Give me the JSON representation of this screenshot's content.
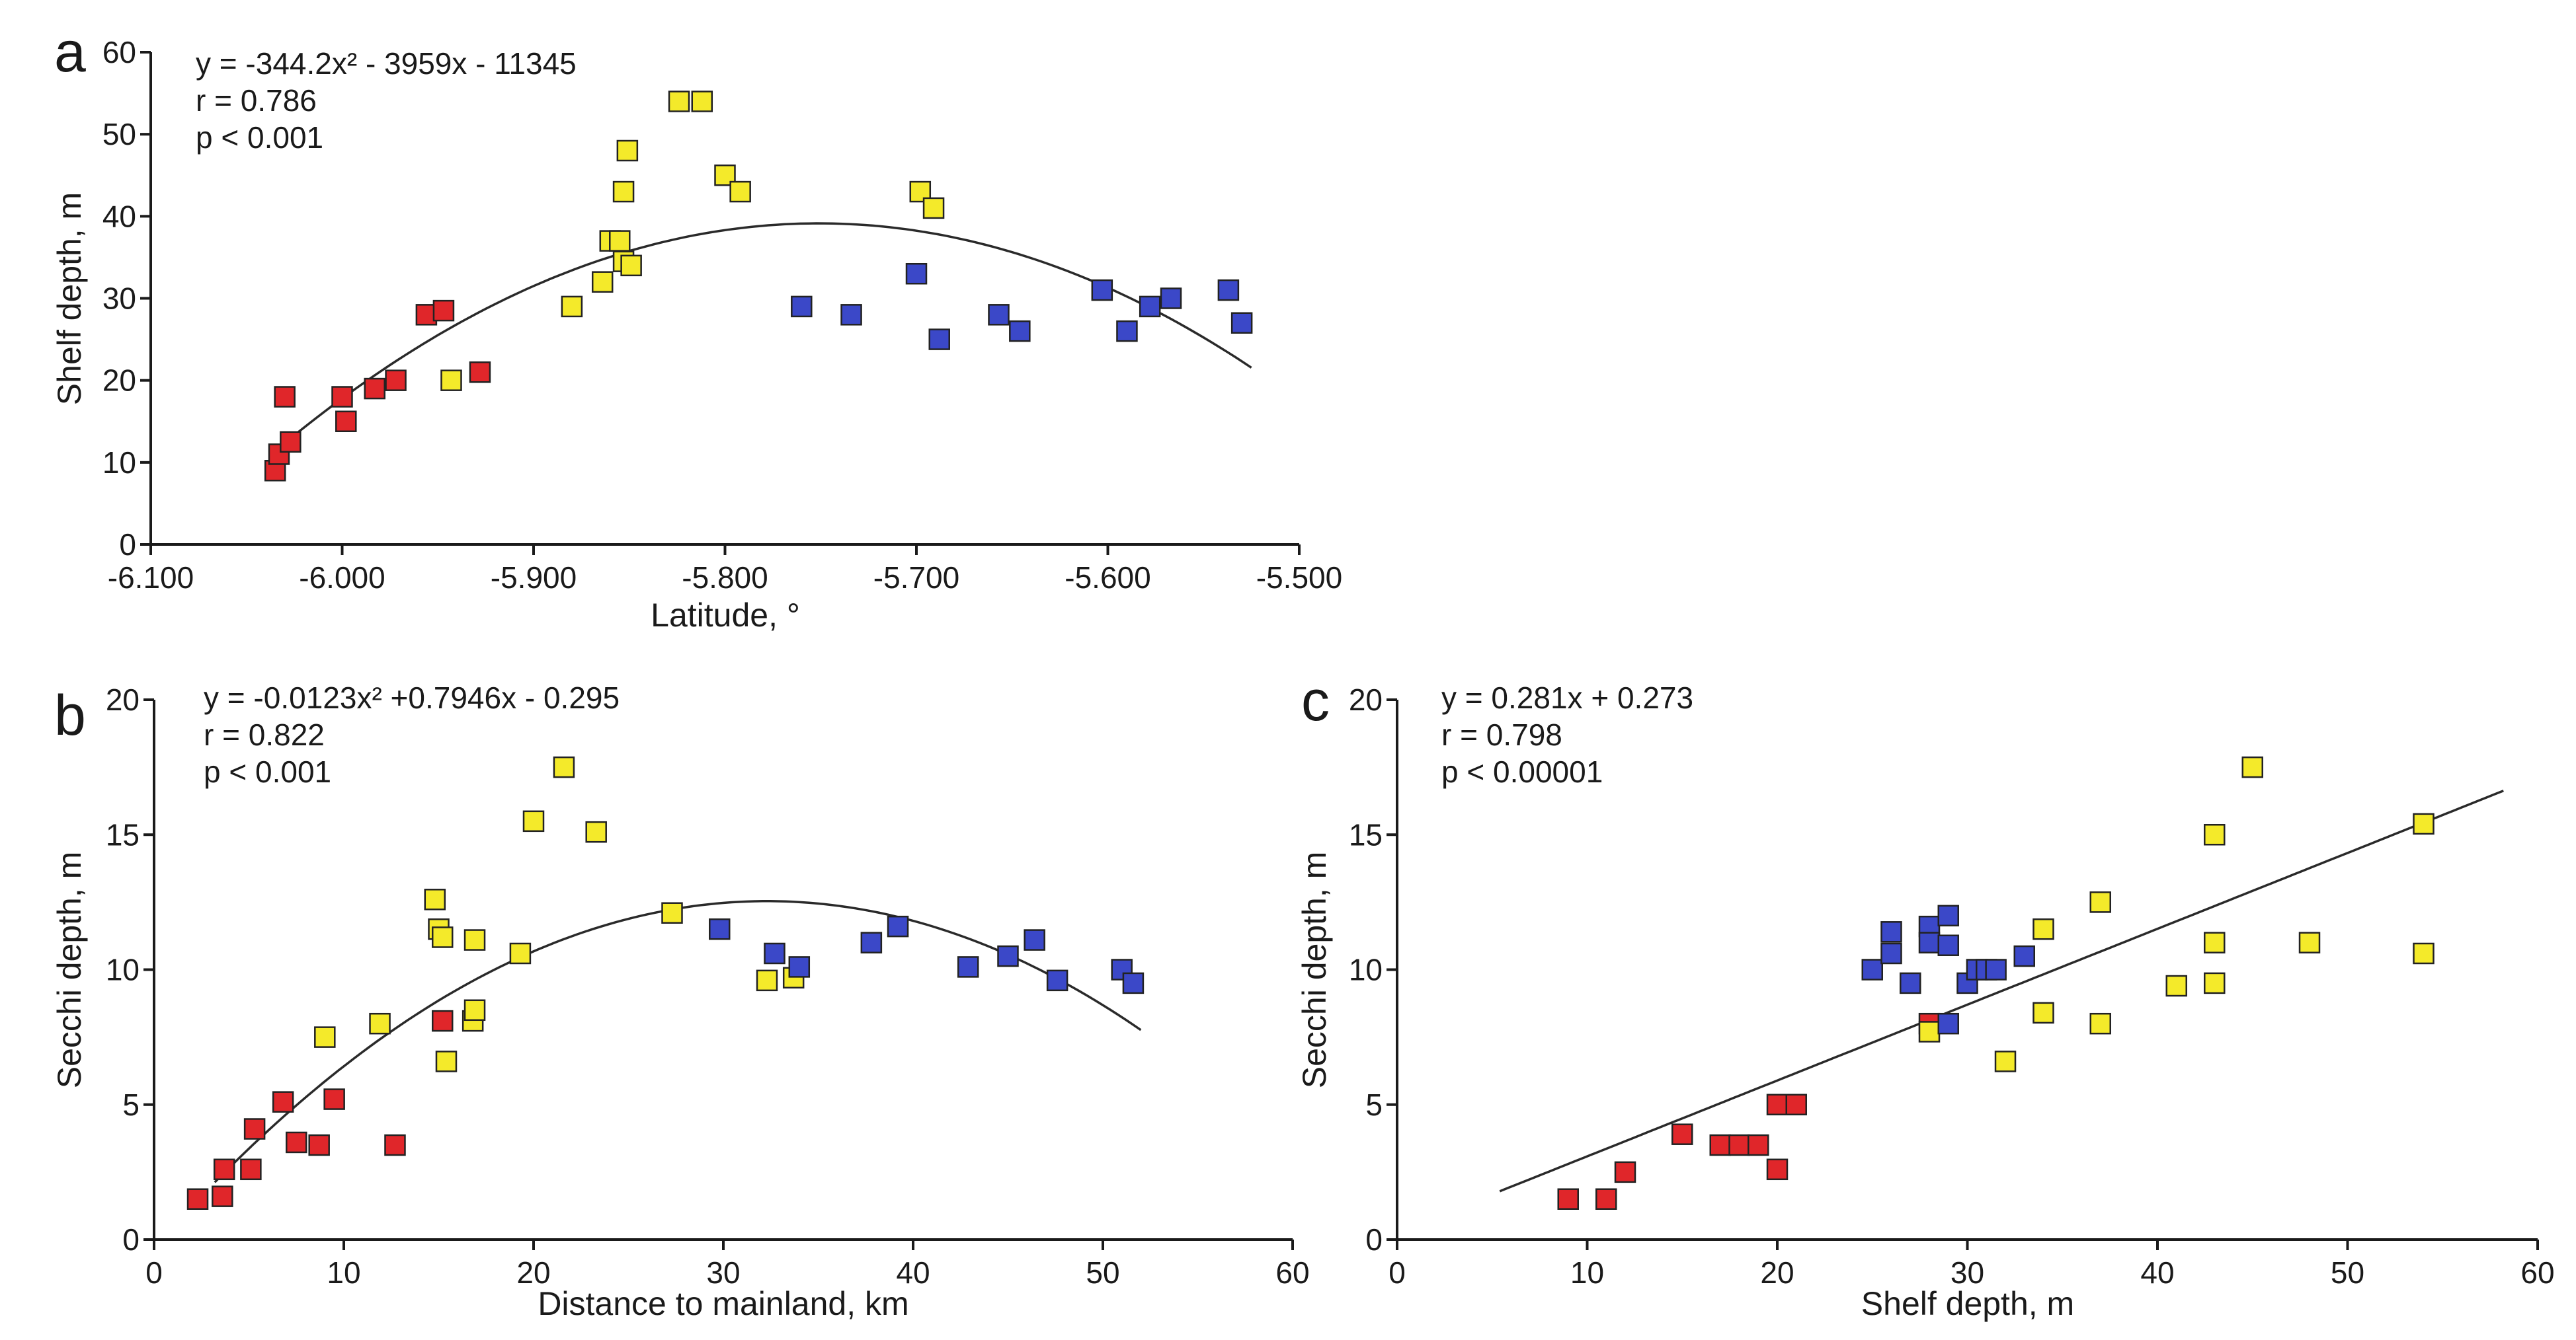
{
  "colors": {
    "red": "#e0262a",
    "yellow": "#f4ea2a",
    "blue": "#3b48c8",
    "axis": "#1a1a1a",
    "curve": "#2a2a2a"
  },
  "chart_data": [
    {
      "id": "a",
      "type": "scatter",
      "panel_label": "a",
      "xlabel": "Latitude, °",
      "ylabel": "Shelf depth, m",
      "xlim": [
        -6.1,
        -5.5
      ],
      "ylim": [
        0,
        60
      ],
      "xticks": [
        -6.1,
        -6.0,
        -5.9,
        -5.8,
        -5.7,
        -5.6,
        -5.5
      ],
      "xtick_labels": [
        "-6.100",
        "-6.000",
        "-5.900",
        "-5.800",
        "-5.700",
        "-5.600",
        "-5.500"
      ],
      "yticks": [
        0,
        10,
        20,
        30,
        40,
        50,
        60
      ],
      "ytick_labels": [
        "0",
        "10",
        "20",
        "30",
        "40",
        "50",
        "60"
      ],
      "annotations": [
        "y = -344.2x² - 3959x - 11345",
        "r = 0.786",
        "p < 0.001"
      ],
      "fit": {
        "kind": "quadratic",
        "coef": [
          -344.2,
          -3959,
          -11345
        ],
        "x_range": [
          -6.03,
          -5.525
        ]
      },
      "series": [
        {
          "name": "red",
          "color": "red",
          "points": [
            [
              -6.035,
              9
            ],
            [
              -6.033,
              11
            ],
            [
              -6.027,
              12.5
            ],
            [
              -6.03,
              18
            ],
            [
              -6.0,
              18
            ],
            [
              -5.998,
              15
            ],
            [
              -5.983,
              19
            ],
            [
              -5.972,
              20
            ],
            [
              -5.956,
              28
            ],
            [
              -5.947,
              28.5
            ],
            [
              -5.928,
              21
            ]
          ]
        },
        {
          "name": "yellow",
          "color": "yellow",
          "points": [
            [
              -5.943,
              20
            ],
            [
              -5.88,
              29
            ],
            [
              -5.864,
              32
            ],
            [
              -5.86,
              37
            ],
            [
              -5.855,
              37
            ],
            [
              -5.853,
              34.5
            ],
            [
              -5.849,
              34
            ],
            [
              -5.853,
              43
            ],
            [
              -5.851,
              48
            ],
            [
              -5.824,
              54
            ],
            [
              -5.812,
              54
            ],
            [
              -5.8,
              45
            ],
            [
              -5.792,
              43
            ],
            [
              -5.698,
              43
            ],
            [
              -5.691,
              41
            ]
          ]
        },
        {
          "name": "blue",
          "color": "blue",
          "points": [
            [
              -5.76,
              29
            ],
            [
              -5.734,
              28
            ],
            [
              -5.7,
              33
            ],
            [
              -5.688,
              25
            ],
            [
              -5.657,
              28
            ],
            [
              -5.646,
              26
            ],
            [
              -5.603,
              31
            ],
            [
              -5.59,
              26
            ],
            [
              -5.578,
              29
            ],
            [
              -5.567,
              30
            ],
            [
              -5.537,
              31
            ],
            [
              -5.53,
              27
            ]
          ]
        }
      ]
    },
    {
      "id": "b",
      "type": "scatter",
      "panel_label": "b",
      "xlabel": "Distance to mainland, km",
      "ylabel": "Secchi depth, m",
      "xlim": [
        0,
        60
      ],
      "ylim": [
        0,
        20
      ],
      "xticks": [
        0,
        10,
        20,
        30,
        40,
        50,
        60
      ],
      "xtick_labels": [
        "0",
        "10",
        "20",
        "30",
        "40",
        "50",
        "60"
      ],
      "yticks": [
        0,
        5,
        10,
        15,
        20
      ],
      "ytick_labels": [
        "0",
        "5",
        "10",
        "15",
        "20"
      ],
      "annotations": [
        "y = -0.0123x² +0.7946x - 0.295",
        "r = 0.822",
        "p < 0.001"
      ],
      "fit": {
        "kind": "quadratic",
        "coef": [
          -0.0123,
          0.7946,
          -0.295
        ],
        "x_range": [
          3.2,
          52
        ]
      },
      "series": [
        {
          "name": "red",
          "color": "red",
          "points": [
            [
              2.3,
              1.5
            ],
            [
              3.6,
              1.6
            ],
            [
              3.7,
              2.6
            ],
            [
              5.1,
              2.6
            ],
            [
              5.3,
              4.1
            ],
            [
              6.8,
              5.1
            ],
            [
              7.5,
              3.6
            ],
            [
              8.7,
              3.5
            ],
            [
              9.5,
              5.2
            ],
            [
              12.7,
              3.5
            ],
            [
              15.2,
              8.1
            ]
          ]
        },
        {
          "name": "yellow",
          "color": "yellow",
          "points": [
            [
              9.0,
              7.5
            ],
            [
              11.9,
              8.0
            ],
            [
              14.8,
              12.6
            ],
            [
              15.0,
              11.5
            ],
            [
              15.2,
              11.2
            ],
            [
              15.4,
              6.6
            ],
            [
              16.8,
              8.1
            ],
            [
              16.9,
              8.5
            ],
            [
              16.9,
              11.1
            ],
            [
              19.3,
              10.6
            ],
            [
              20.0,
              15.5
            ],
            [
              21.6,
              17.5
            ],
            [
              23.3,
              15.1
            ],
            [
              27.3,
              12.1
            ],
            [
              32.3,
              9.6
            ],
            [
              33.7,
              9.7
            ]
          ]
        },
        {
          "name": "blue",
          "color": "blue",
          "points": [
            [
              29.8,
              11.5
            ],
            [
              32.7,
              10.6
            ],
            [
              34.0,
              10.1
            ],
            [
              37.8,
              11.0
            ],
            [
              39.2,
              11.6
            ],
            [
              42.9,
              10.1
            ],
            [
              45.0,
              10.5
            ],
            [
              46.4,
              11.1
            ],
            [
              47.6,
              9.6
            ],
            [
              51.0,
              10.0
            ],
            [
              51.6,
              9.5
            ]
          ]
        }
      ]
    },
    {
      "id": "c",
      "type": "scatter",
      "panel_label": "c",
      "xlabel": "Shelf depth, m",
      "ylabel": "Secchi depth, m",
      "xlim": [
        0,
        60
      ],
      "ylim": [
        0,
        20
      ],
      "xticks": [
        0,
        10,
        20,
        30,
        40,
        50,
        60
      ],
      "xtick_labels": [
        "0",
        "10",
        "20",
        "30",
        "40",
        "50",
        "60"
      ],
      "yticks": [
        0,
        5,
        10,
        15,
        20
      ],
      "ytick_labels": [
        "0",
        "5",
        "10",
        "15",
        "20"
      ],
      "annotations": [
        "y = 0.281x + 0.273",
        "r = 0.798",
        "p < 0.00001"
      ],
      "fit": {
        "kind": "linear",
        "coef": [
          0,
          0.281,
          0.273
        ],
        "x_range": [
          5.4,
          58.2
        ]
      },
      "series": [
        {
          "name": "red",
          "color": "red",
          "points": [
            [
              9,
              1.5
            ],
            [
              11,
              1.5
            ],
            [
              12,
              2.5
            ],
            [
              15,
              3.9
            ],
            [
              17,
              3.5
            ],
            [
              18,
              3.5
            ],
            [
              19,
              3.5
            ],
            [
              20,
              2.6
            ],
            [
              20,
              5.0
            ],
            [
              21,
              5.0
            ],
            [
              28,
              8.0
            ]
          ]
        },
        {
          "name": "yellow",
          "color": "yellow",
          "points": [
            [
              28,
              7.7
            ],
            [
              32,
              6.6
            ],
            [
              34,
              8.4
            ],
            [
              34,
              11.5
            ],
            [
              37,
              12.5
            ],
            [
              37,
              8.0
            ],
            [
              41,
              9.4
            ],
            [
              43,
              9.5
            ],
            [
              43,
              11.0
            ],
            [
              43,
              15.0
            ],
            [
              45,
              17.5
            ],
            [
              48,
              11.0
            ],
            [
              54,
              15.4
            ],
            [
              54,
              10.6
            ]
          ]
        },
        {
          "name": "blue",
          "color": "blue",
          "points": [
            [
              25,
              10.0
            ],
            [
              26,
              11.4
            ],
            [
              26,
              10.6
            ],
            [
              27,
              9.5
            ],
            [
              28,
              11.6
            ],
            [
              28,
              11.0
            ],
            [
              29,
              12.0
            ],
            [
              29,
              10.9
            ],
            [
              29,
              8.0
            ],
            [
              30,
              9.5
            ],
            [
              30.5,
              10.0
            ],
            [
              31,
              10.0
            ],
            [
              31.5,
              10.0
            ],
            [
              33,
              10.5
            ]
          ]
        }
      ]
    }
  ]
}
